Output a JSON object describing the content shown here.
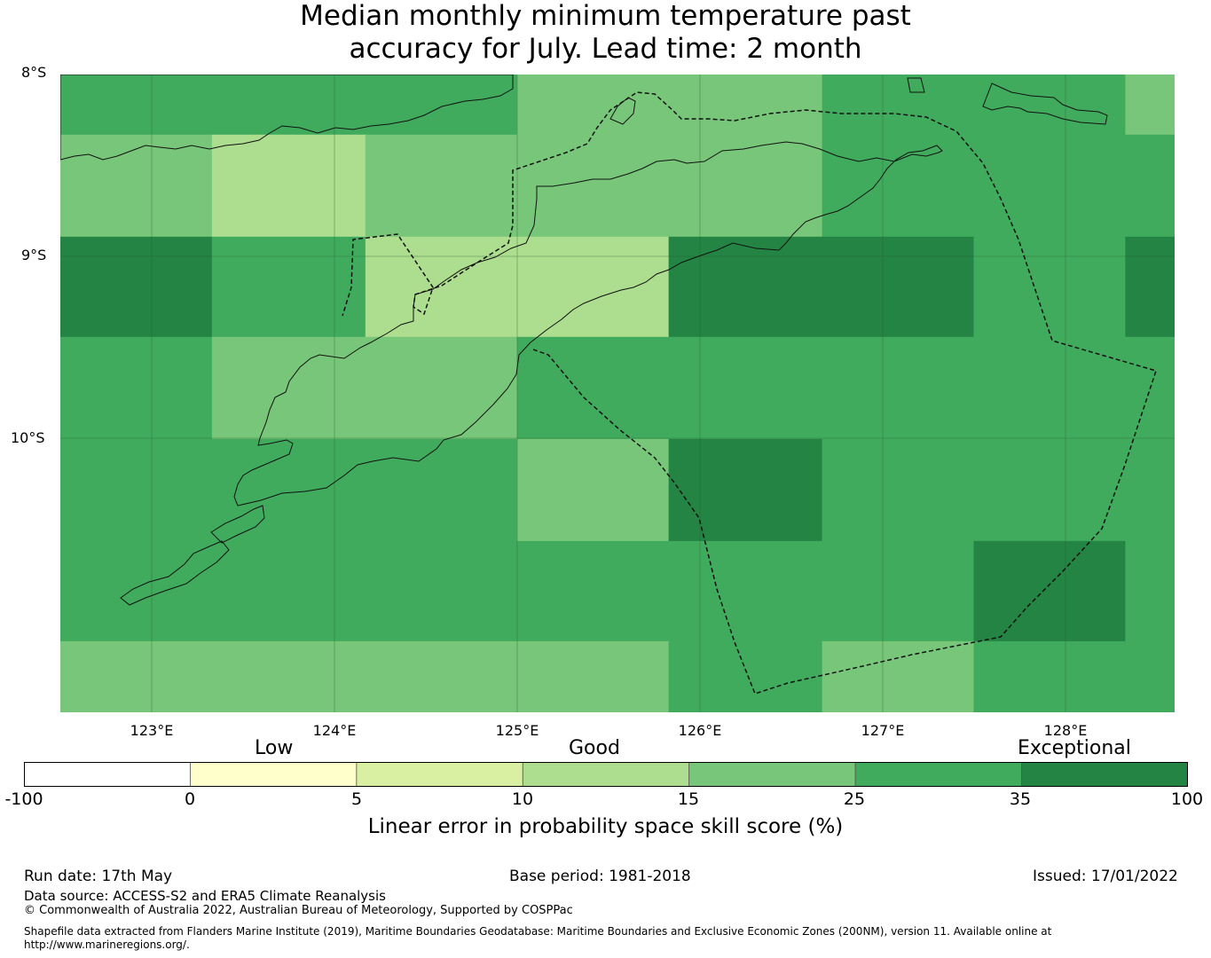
{
  "title": {
    "line1": "Median monthly minimum temperature past",
    "line2": "accuracy for July. Lead time: 2 month"
  },
  "map": {
    "lat_labels": [
      "8°S",
      "9°S",
      "10°S"
    ],
    "lon_labels": [
      "123°E",
      "124°E",
      "125°E",
      "126°E",
      "127°E",
      "128°E"
    ],
    "lon_range": [
      122.5,
      128.6
    ],
    "lat_range": [
      -11.5,
      -8.0
    ],
    "grid_lon_edges": [
      122.5,
      123.33,
      124.17,
      125.0,
      125.83,
      126.67,
      127.5,
      128.33,
      128.6
    ],
    "grid_lat_edges": [
      -8.0,
      -8.33,
      -8.89,
      -9.44,
      -10.0,
      -10.56,
      -11.11,
      -11.5
    ],
    "category_colors": [
      "#ffffff",
      "#ffffcc",
      "#d9f0a3",
      "#addd8e",
      "#78c679",
      "#41ab5d",
      "#238443"
    ],
    "cells": [
      [
        5,
        5,
        5,
        4,
        4,
        5,
        5,
        4
      ],
      [
        4,
        3,
        4,
        4,
        4,
        5,
        5,
        5
      ],
      [
        6,
        5,
        3,
        3,
        6,
        6,
        5,
        6
      ],
      [
        5,
        4,
        4,
        5,
        5,
        5,
        5,
        5
      ],
      [
        5,
        5,
        5,
        4,
        6,
        5,
        5,
        5
      ],
      [
        5,
        5,
        5,
        5,
        5,
        5,
        6,
        5
      ],
      [
        4,
        4,
        4,
        4,
        5,
        4,
        5,
        5
      ]
    ]
  },
  "colorbar": {
    "category_labels": [
      "Low",
      "Good",
      "Exceptional"
    ],
    "ticks": [
      "-100",
      "0",
      "5",
      "10",
      "15",
      "25",
      "35",
      "100"
    ],
    "colors": [
      "#ffffff",
      "#ffffcc",
      "#d9f0a3",
      "#addd8e",
      "#78c679",
      "#41ab5d",
      "#238443"
    ],
    "title": "Linear error in probability space skill score (%)"
  },
  "footer": {
    "run_date": "Run date: 17th May",
    "base_period": "Base period: 1981-2018",
    "issued": "Issued: 17/01/2022",
    "data_source": "Data source: ACCESS-S2 and ERA5 Climate Reanalysis",
    "copyright": "© Commonwealth of Australia 2022, Australian Bureau of Meteorology, Supported by COSPPac",
    "shapefile": "Shapefile data extracted from Flanders Marine Institute (2019), Maritime Boundaries Geodatabase: Maritime Boundaries and Exclusive Economic Zones (200NM), version 11. Available online at http://www.marineregions.org/."
  }
}
